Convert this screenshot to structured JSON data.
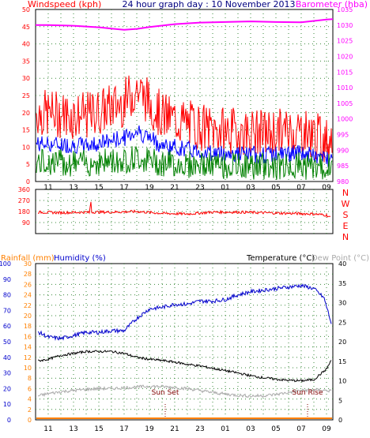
{
  "chart_data": [
    {
      "type": "line",
      "title": "24 hour graph day : 10 November 2013",
      "left_axis_label": "Windspeed (kph)",
      "right_axis_label": "Barometer (hba)",
      "x_ticks": [
        "11",
        "13",
        "15",
        "17",
        "19",
        "21",
        "23",
        "01",
        "03",
        "05",
        "07",
        "09"
      ],
      "y_left_ticks": [
        "0",
        "5",
        "10",
        "15",
        "20",
        "25",
        "30",
        "35",
        "40",
        "45",
        "50"
      ],
      "y_right_ticks": [
        "980",
        "985",
        "990",
        "995",
        "1000",
        "1005",
        "1010",
        "1015",
        "1020",
        "1025",
        "1030",
        "1035"
      ],
      "ylim_left": [
        0,
        50
      ],
      "ylim_right": [
        980,
        1035
      ],
      "xlim": [
        10,
        33.5
      ],
      "grid": true,
      "colors": {
        "windspeed_gust": "#ff0000",
        "windspeed_avg": "#0000ff",
        "windspeed_low": "#008000",
        "barometer": "#ff00ff"
      },
      "series": [
        {
          "name": "Barometer",
          "x": [
            10,
            11,
            13,
            15,
            16,
            17,
            18,
            19,
            21,
            23,
            25,
            27,
            29,
            31,
            33,
            33.5
          ],
          "values": [
            1030,
            1030,
            1029.8,
            1029.3,
            1028.9,
            1028.5,
            1028.8,
            1029.4,
            1030.3,
            1030.8,
            1031.0,
            1031.2,
            1031.0,
            1030.9,
            1031.8,
            1031.9
          ]
        }
      ]
    },
    {
      "type": "line",
      "side_labels": [
        "N",
        "W",
        "S",
        "E",
        "N"
      ],
      "y_ticks": [
        "90",
        "180",
        "270",
        "360"
      ],
      "ylim": [
        0,
        360
      ],
      "colors": {
        "direction": "#ff0000"
      },
      "series": [
        {
          "name": "Wind Direction",
          "x": [
            10,
            12,
            14,
            14.3,
            14.35,
            14.4,
            16,
            18,
            20,
            22,
            24,
            26,
            28,
            30,
            32,
            33,
            33.5
          ],
          "values": [
            175,
            170,
            175,
            170,
            345,
            175,
            175,
            180,
            165,
            160,
            175,
            175,
            170,
            165,
            160,
            150,
            120
          ]
        }
      ]
    },
    {
      "type": "line",
      "legend": [
        "Rainfall (mm)",
        "Humidity (%)",
        "Temperature (°C)",
        "Dew Point (°C)"
      ],
      "y_humidity_ticks": [
        "0",
        "10",
        "20",
        "30",
        "40",
        "50",
        "60",
        "70",
        "80",
        "90",
        "100"
      ],
      "y_rainfall_ticks": [
        "0",
        "2",
        "4",
        "6",
        "8",
        "10",
        "12",
        "14",
        "16",
        "18",
        "20",
        "22",
        "24",
        "26",
        "28",
        "30"
      ],
      "y_temperature_ticks": [
        "0",
        "5",
        "10",
        "15",
        "20",
        "25",
        "30",
        "35",
        "40"
      ],
      "ylim_humidity": [
        0,
        100
      ],
      "ylim_temperature": [
        0,
        40
      ],
      "annotations": [
        "Sun Set",
        "Sun Rise"
      ],
      "colors": {
        "rainfall": "#ff8000",
        "humidity": "#0000cc",
        "temperature": "#000000",
        "dewpoint": "#aaaaaa"
      },
      "series": [
        {
          "name": "Humidity (%)",
          "x": [
            10,
            11,
            12,
            13,
            14,
            15,
            16,
            17,
            18,
            19,
            20,
            21,
            22,
            23,
            24,
            25,
            26,
            27,
            28,
            29,
            30,
            31,
            32,
            32.8,
            33.2,
            33.5
          ],
          "values": [
            57,
            53,
            52,
            54,
            56,
            56,
            57,
            57,
            65,
            71,
            72,
            74,
            74,
            76,
            76,
            77,
            80,
            82,
            83,
            84,
            85,
            86,
            84,
            78,
            67,
            58
          ]
        },
        {
          "name": "Temperature (°C)",
          "x": [
            10,
            11,
            12,
            13,
            14,
            15,
            16,
            17,
            18,
            19,
            20,
            21,
            22,
            23,
            24,
            25,
            26,
            27,
            28,
            29,
            30,
            31,
            32,
            33,
            33.5
          ],
          "values": [
            15,
            15.5,
            16.5,
            17,
            17.5,
            17.5,
            17.5,
            17,
            16,
            15.5,
            15.2,
            14.8,
            14.2,
            13.8,
            13.2,
            12.6,
            12,
            11.3,
            10.8,
            10.4,
            10.1,
            10,
            10.3,
            13,
            16
          ]
        },
        {
          "name": "Dew Point (°C)",
          "x": [
            10,
            11,
            12,
            13,
            14,
            15,
            16,
            17,
            18,
            19,
            20,
            21,
            22,
            23,
            24,
            25,
            26,
            27,
            28,
            29,
            30,
            31,
            32,
            33,
            33.5
          ],
          "values": [
            6,
            6.7,
            7.2,
            7.5,
            7.8,
            8,
            8,
            8.2,
            8.4,
            8.6,
            8.5,
            8.3,
            8,
            7.5,
            7,
            6.6,
            6.3,
            6.1,
            6.2,
            6.5,
            7,
            7.5,
            7.7,
            7.5,
            7.4
          ]
        },
        {
          "name": "Rainfall (mm)",
          "x": [
            10,
            33.5
          ],
          "values": [
            0,
            0
          ]
        }
      ],
      "sun_set_x": 20.25,
      "sun_rise_x": 31.5
    }
  ]
}
